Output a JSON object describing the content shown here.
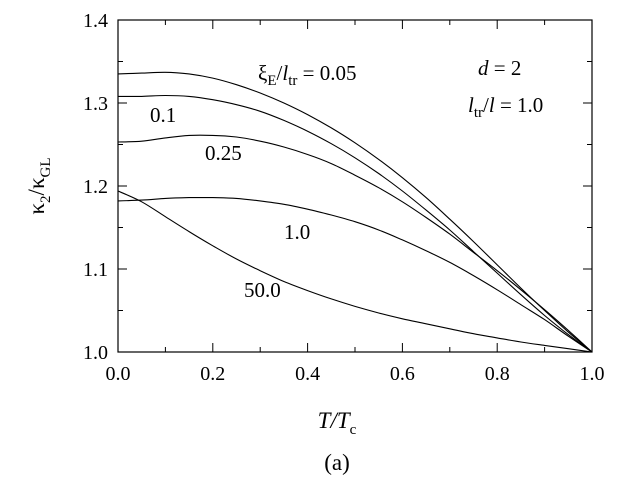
{
  "chart_data": {
    "type": "line",
    "xlabel": {
      "main": "T/T",
      "sub": "c"
    },
    "ylabel": {
      "pre": "κ",
      "pre_sub": "2",
      "mid": "/κ",
      "mid_sub": "GL"
    },
    "xlim": [
      0.0,
      1.0
    ],
    "ylim": [
      1.0,
      1.4
    ],
    "x_ticks": [
      "0.0",
      "0.2",
      "0.4",
      "0.6",
      "0.8",
      "1.0"
    ],
    "y_ticks": [
      "1.0",
      "1.1",
      "1.2",
      "1.3",
      "1.4"
    ],
    "grid": false,
    "legend": "none",
    "caption": "(a)",
    "params": {
      "d_var": "d",
      "d_eq": " = 2",
      "l_var1": "l",
      "l_sub": "tr",
      "l_mid": "/",
      "l_var2": "l",
      "l_eq": " = 1.0"
    },
    "series": [
      {
        "curve_label": "ξ_E/l_tr = 0.05",
        "x": [
          0.0,
          0.05,
          0.1,
          0.15,
          0.2,
          0.25,
          0.3,
          0.35,
          0.4,
          0.45,
          0.5,
          0.55,
          0.6,
          0.65,
          0.7,
          0.75,
          0.8,
          0.85,
          0.9,
          0.95,
          1.0
        ],
        "y": [
          1.335,
          1.336,
          1.337,
          1.335,
          1.33,
          1.322,
          1.312,
          1.3,
          1.286,
          1.27,
          1.252,
          1.232,
          1.21,
          1.186,
          1.16,
          1.133,
          1.105,
          1.077,
          1.05,
          1.024,
          1.0
        ]
      },
      {
        "curve_label": "0.1",
        "x": [
          0.0,
          0.05,
          0.1,
          0.15,
          0.2,
          0.25,
          0.3,
          0.35,
          0.4,
          0.45,
          0.5,
          0.55,
          0.6,
          0.65,
          0.7,
          0.75,
          0.8,
          0.85,
          0.9,
          0.95,
          1.0
        ],
        "y": [
          1.308,
          1.308,
          1.309,
          1.308,
          1.304,
          1.298,
          1.29,
          1.279,
          1.266,
          1.251,
          1.234,
          1.215,
          1.194,
          1.171,
          1.147,
          1.121,
          1.095,
          1.069,
          1.044,
          1.021,
          1.0
        ]
      },
      {
        "curve_label": "0.25",
        "x": [
          0.0,
          0.05,
          0.1,
          0.15,
          0.2,
          0.25,
          0.3,
          0.35,
          0.4,
          0.45,
          0.5,
          0.55,
          0.6,
          0.65,
          0.7,
          0.75,
          0.8,
          0.85,
          0.9,
          0.95,
          1.0
        ],
        "y": [
          1.253,
          1.254,
          1.258,
          1.261,
          1.261,
          1.259,
          1.254,
          1.247,
          1.238,
          1.227,
          1.213,
          1.198,
          1.181,
          1.162,
          1.142,
          1.12,
          1.098,
          1.075,
          1.051,
          1.026,
          1.0
        ]
      },
      {
        "curve_label": "1.0",
        "x": [
          0.0,
          0.05,
          0.1,
          0.15,
          0.2,
          0.25,
          0.3,
          0.35,
          0.4,
          0.45,
          0.5,
          0.55,
          0.6,
          0.65,
          0.7,
          0.75,
          0.8,
          0.85,
          0.9,
          0.95,
          1.0
        ],
        "y": [
          1.182,
          1.183,
          1.185,
          1.186,
          1.186,
          1.185,
          1.182,
          1.178,
          1.172,
          1.165,
          1.157,
          1.147,
          1.135,
          1.122,
          1.108,
          1.092,
          1.075,
          1.057,
          1.039,
          1.019,
          1.0
        ]
      },
      {
        "curve_label": "50.0",
        "x": [
          0.0,
          0.05,
          0.1,
          0.15,
          0.2,
          0.25,
          0.3,
          0.35,
          0.4,
          0.45,
          0.5,
          0.55,
          0.6,
          0.65,
          0.7,
          0.75,
          0.8,
          0.85,
          0.9,
          0.95,
          1.0
        ],
        "y": [
          1.194,
          1.181,
          1.163,
          1.145,
          1.128,
          1.112,
          1.098,
          1.085,
          1.074,
          1.064,
          1.055,
          1.047,
          1.04,
          1.034,
          1.028,
          1.022,
          1.017,
          1.012,
          1.008,
          1.004,
          1.0
        ]
      }
    ]
  }
}
